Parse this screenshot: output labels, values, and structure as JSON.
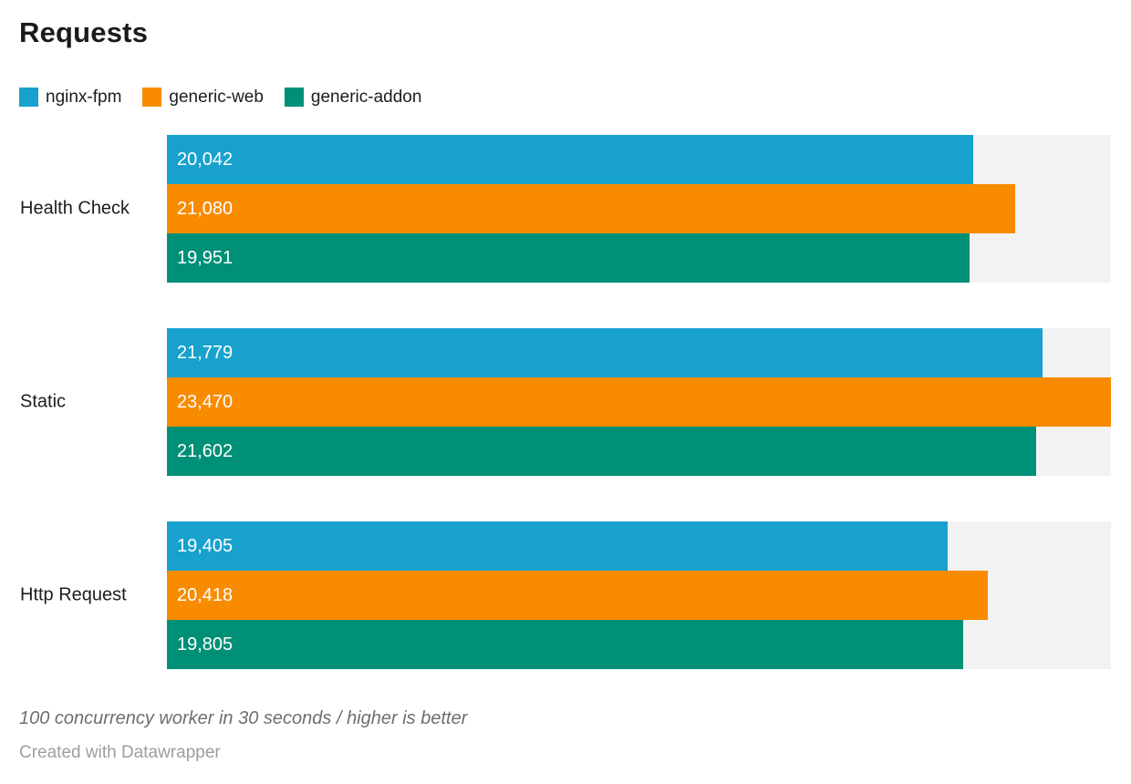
{
  "title": "Requests",
  "legend": [
    {
      "label": "nginx-fpm",
      "color": "#18a1cd"
    },
    {
      "label": "generic-web",
      "color": "#f88b00"
    },
    {
      "label": "generic-addon",
      "color": "#009077"
    }
  ],
  "chart_data": {
    "type": "bar",
    "orientation": "horizontal",
    "title": "Requests",
    "categories": [
      "Health Check",
      "Static",
      "Http Request"
    ],
    "series": [
      {
        "name": "nginx-fpm",
        "color": "#18a1cd",
        "values": [
          20042,
          21779,
          19405
        ]
      },
      {
        "name": "generic-web",
        "color": "#f88b00",
        "values": [
          21080,
          23470,
          20418
        ]
      },
      {
        "name": "generic-addon",
        "color": "#009077",
        "values": [
          19951,
          21602,
          19805
        ]
      }
    ],
    "value_labels_inside_bars": true,
    "value_label_color": "#ffffff",
    "track_color": "#f2f2f2",
    "axis_max": 23470,
    "grid": false,
    "legend_position": "top-left"
  },
  "footer": {
    "note": "100 concurrency worker in 30 seconds / higher is better",
    "byline": "Created with Datawrapper"
  }
}
